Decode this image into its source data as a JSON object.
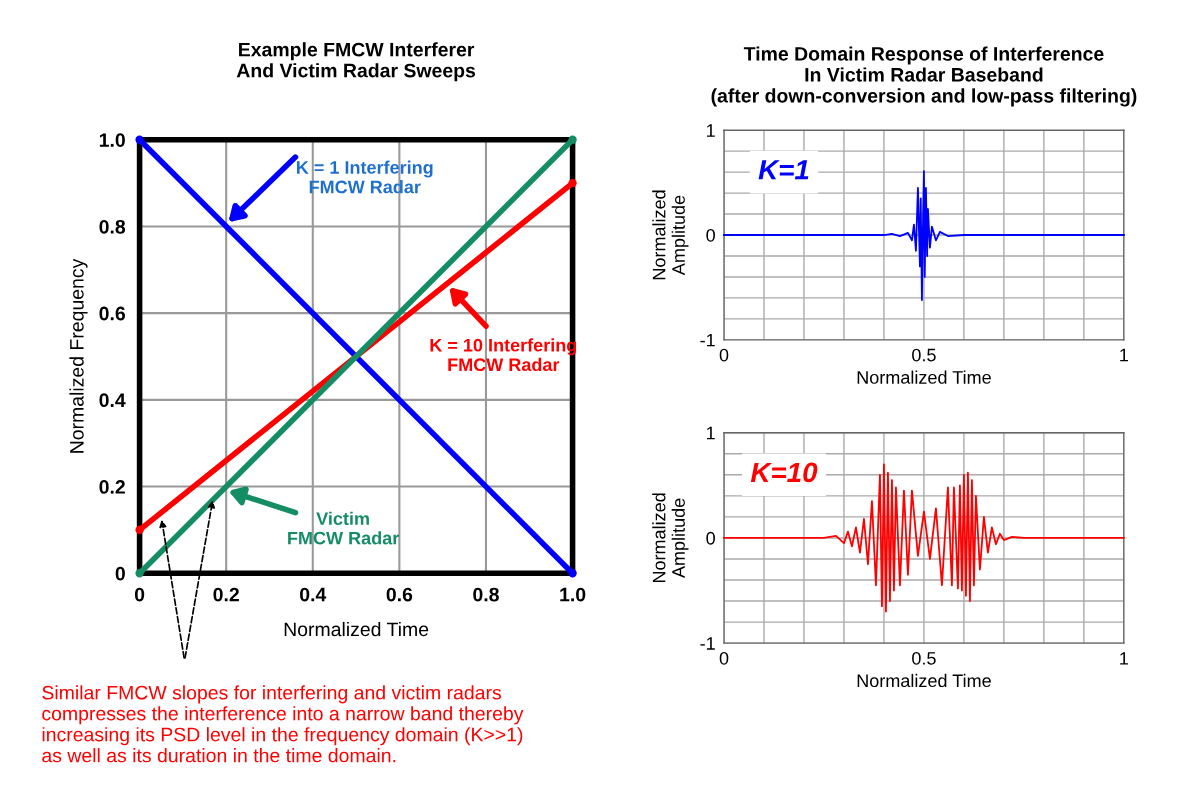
{
  "chart_data": [
    {
      "type": "line",
      "title": "Example FMCW Interferer\nAnd Victim Radar Sweeps",
      "xlabel": "Normalized Time",
      "ylabel": "Normalized Frequency",
      "xlim": [
        0,
        1
      ],
      "ylim": [
        0,
        1
      ],
      "xticks": [
        0,
        0.2,
        0.4,
        0.6,
        0.8,
        {
          "value": 1,
          "label": "1.0"
        }
      ],
      "yticks": [
        0,
        0.2,
        0.4,
        0.6,
        0.8,
        {
          "value": 1,
          "label": "1.0"
        }
      ],
      "grid": true,
      "marker": "circle",
      "line_style": "solid",
      "series": [
        {
          "color": "#0000ff",
          "x": [
            0,
            1
          ],
          "values": [
            1,
            0
          ]
        },
        {
          "color": "#ff0000",
          "x": [
            0,
            1
          ],
          "values": [
            0.1,
            0.9
          ]
        },
        {
          "color": "#148c64",
          "x": [
            0,
            1
          ],
          "values": [
            0,
            1
          ]
        }
      ],
      "annotations": [
        "K = 1 Interfering\nFMCW Radar",
        "K = 10 Interfering\nFMCW Radar",
        "Victim\nFMCW Radar",
        "Similar FMCW slopes for interfering and victim radars\ncompresses the interference into a narrow band thereby\nincreasing its PSD level in the frequency domain (K>>1)\nas well as its duration in the time domain."
      ]
    },
    {
      "type": "line",
      "title": "Time Domain Response of Interference\nIn Victim Radar Baseband\n(after down-conversion and low-pass filtering)",
      "xlabel": "Normalized Time",
      "ylabel": "Normalized\nAmplitude",
      "xlim": [
        0,
        1
      ],
      "ylim": [
        -1,
        1
      ],
      "xticks": [
        0,
        {
          "value": 0.1,
          "label": null
        },
        {
          "value": 0.2,
          "label": null
        },
        {
          "value": 0.3,
          "label": null
        },
        {
          "value": 0.4,
          "label": null
        },
        0.5,
        {
          "value": 0.6,
          "label": null
        },
        {
          "value": 0.7,
          "label": null
        },
        {
          "value": 0.8,
          "label": null
        },
        {
          "value": 0.9,
          "label": null
        },
        1
      ],
      "yticks": [
        -1,
        {
          "value": -0.8,
          "label": null
        },
        {
          "value": -0.6,
          "label": null
        },
        {
          "value": -0.4,
          "label": null
        },
        {
          "value": -0.2,
          "label": null
        },
        0,
        {
          "value": 0.2,
          "label": null
        },
        {
          "value": 0.4,
          "label": null
        },
        {
          "value": 0.6,
          "label": null
        },
        {
          "value": 0.8,
          "label": null
        },
        1
      ],
      "grid": true,
      "series": [
        {
          "color": "#0000ff",
          "x": [
            0,
            0.4,
            0.42,
            0.44,
            0.46,
            0.47,
            0.475,
            0.48,
            0.485,
            0.49,
            0.492,
            0.495,
            0.498,
            0.5,
            0.502,
            0.505,
            0.508,
            0.51,
            0.515,
            0.52,
            0.53,
            0.54,
            0.56,
            0.6,
            1
          ],
          "values": [
            0,
            0,
            0.01,
            -0.01,
            0.02,
            -0.05,
            0.1,
            -0.15,
            0.45,
            -0.3,
            0.35,
            -0.62,
            0.2,
            0.61,
            -0.4,
            0.45,
            -0.2,
            0.25,
            -0.12,
            0.08,
            -0.05,
            0.03,
            -0.01,
            0,
            0
          ]
        }
      ],
      "annotations": [
        "K=1"
      ]
    },
    {
      "type": "line",
      "xlabel": "Normalized Time",
      "ylabel": "Normalized\nAmplitude",
      "xlim": [
        0,
        1
      ],
      "ylim": [
        -1,
        1
      ],
      "xticks": [
        0,
        {
          "value": 0.1,
          "label": null
        },
        {
          "value": 0.2,
          "label": null
        },
        {
          "value": 0.3,
          "label": null
        },
        {
          "value": 0.4,
          "label": null
        },
        0.5,
        {
          "value": 0.6,
          "label": null
        },
        {
          "value": 0.7,
          "label": null
        },
        {
          "value": 0.8,
          "label": null
        },
        {
          "value": 0.9,
          "label": null
        },
        1
      ],
      "yticks": [
        -1,
        {
          "value": -0.8,
          "label": null
        },
        {
          "value": -0.6,
          "label": null
        },
        {
          "value": -0.4,
          "label": null
        },
        {
          "value": -0.2,
          "label": null
        },
        0,
        {
          "value": 0.2,
          "label": null
        },
        {
          "value": 0.4,
          "label": null
        },
        {
          "value": 0.6,
          "label": null
        },
        {
          "value": 0.8,
          "label": null
        },
        1
      ],
      "grid": true,
      "series": [
        {
          "color": "#ff0000",
          "x": [
            0,
            0.25,
            0.28,
            0.3,
            0.31,
            0.32,
            0.33,
            0.34,
            0.35,
            0.36,
            0.37,
            0.38,
            0.39,
            0.395,
            0.4,
            0.405,
            0.41,
            0.415,
            0.42,
            0.425,
            0.43,
            0.44,
            0.45,
            0.46,
            0.47,
            0.485,
            0.5,
            0.515,
            0.53,
            0.545,
            0.56,
            0.57,
            0.575,
            0.585,
            0.59,
            0.595,
            0.6,
            0.605,
            0.61,
            0.615,
            0.62,
            0.625,
            0.63,
            0.64,
            0.65,
            0.66,
            0.67,
            0.68,
            0.69,
            0.7,
            0.72,
            0.75,
            1
          ],
          "values": [
            0,
            0,
            0.02,
            -0.05,
            0.06,
            -0.08,
            0.1,
            -0.14,
            0.18,
            -0.25,
            0.35,
            -0.45,
            0.6,
            -0.65,
            0.7,
            -0.7,
            0.62,
            -0.6,
            0.55,
            -0.5,
            0.48,
            -0.45,
            0.45,
            -0.35,
            0.45,
            -0.17,
            0.25,
            -0.2,
            0.28,
            -0.45,
            0.48,
            -0.45,
            0.48,
            -0.48,
            0.5,
            -0.5,
            0.6,
            -0.55,
            0.62,
            -0.6,
            0.55,
            -0.45,
            0.4,
            -0.3,
            0.2,
            -0.14,
            0.1,
            -0.06,
            0.04,
            -0.02,
            0.01,
            0,
            0
          ]
        }
      ],
      "annotations": [
        "K=10"
      ]
    }
  ]
}
